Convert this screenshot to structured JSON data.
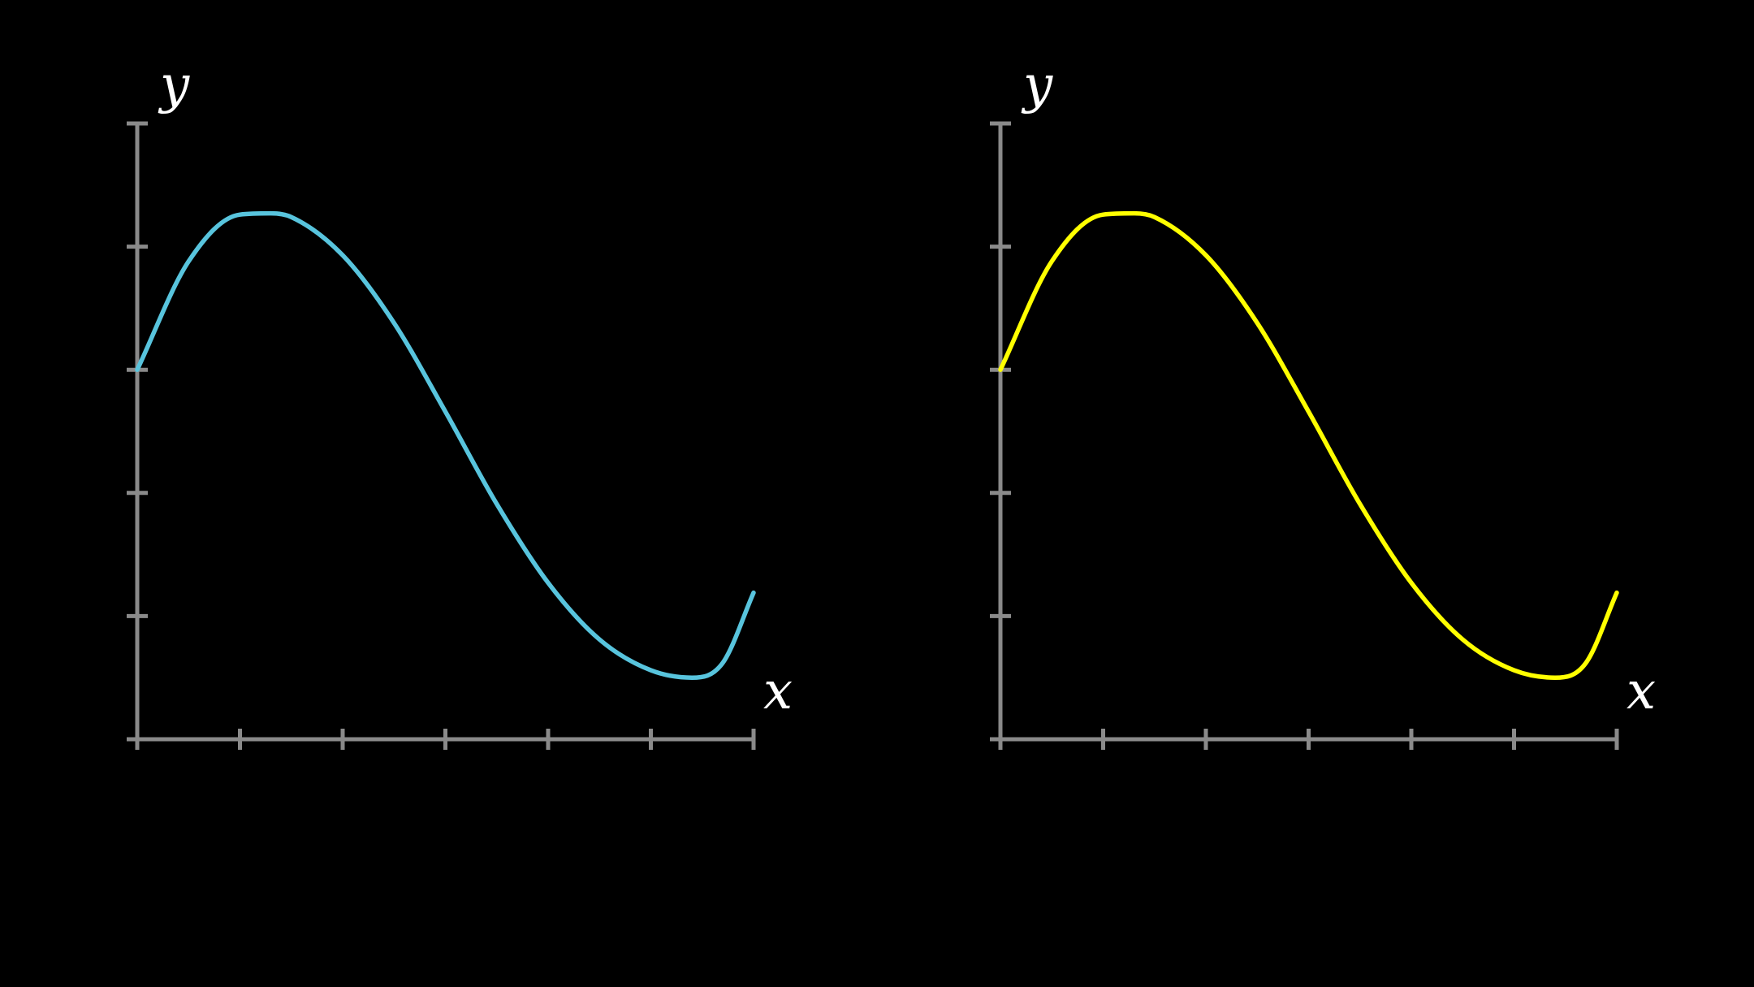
{
  "chart_data": [
    {
      "type": "line",
      "xlabel": "x",
      "ylabel": "y",
      "xlim": [
        0,
        6
      ],
      "ylim": [
        0,
        5
      ],
      "x_ticks": [
        0,
        1,
        2,
        3,
        4,
        5,
        6
      ],
      "y_ticks": [
        0,
        1,
        2,
        3,
        4,
        5
      ],
      "grid": false,
      "series": [
        {
          "color": "#58c4dd",
          "x": [
            0,
            0.5,
            1,
            1.3,
            1.5,
            2,
            2.5,
            3,
            3.5,
            4,
            4.5,
            5,
            5.4,
            5.7,
            6
          ],
          "y": [
            3.0,
            3.88,
            4.26,
            4.27,
            4.24,
            3.93,
            3.38,
            2.66,
            1.91,
            1.27,
            0.81,
            0.56,
            0.5,
            0.62,
            1.19
          ]
        }
      ]
    },
    {
      "type": "line",
      "xlabel": "x",
      "ylabel": "y",
      "xlim": [
        0,
        6
      ],
      "ylim": [
        0,
        5
      ],
      "x_ticks": [
        0,
        1,
        2,
        3,
        4,
        5,
        6
      ],
      "y_ticks": [
        0,
        1,
        2,
        3,
        4,
        5
      ],
      "grid": false,
      "series": [
        {
          "color": "#ffff00",
          "x": [
            0,
            0.5,
            1,
            1.3,
            1.5,
            2,
            2.5,
            3,
            3.5,
            4,
            4.5,
            5,
            5.4,
            5.7,
            6
          ],
          "y": [
            3.0,
            3.88,
            4.26,
            4.27,
            4.24,
            3.93,
            3.38,
            2.66,
            1.91,
            1.27,
            0.81,
            0.56,
            0.5,
            0.62,
            1.19
          ]
        }
      ]
    }
  ]
}
